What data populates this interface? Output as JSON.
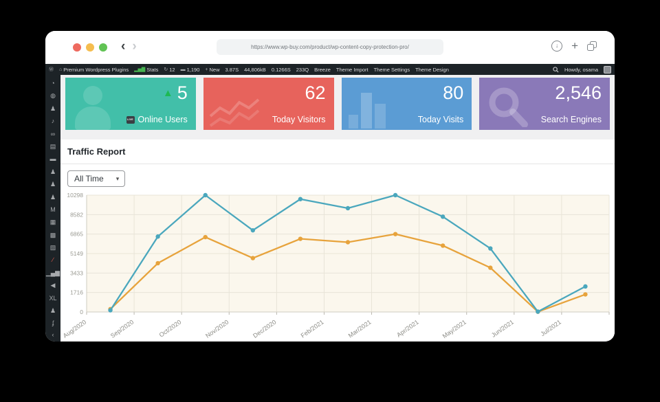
{
  "browser": {
    "url": "https://www.wp-buy.com/product/wp-content-copy-protection-pro/",
    "traffic_lights": [
      "#ee6a5f",
      "#f5bd4f",
      "#61c354"
    ]
  },
  "adminbar": {
    "items": [
      {
        "icon": "wordpress-logo-icon",
        "glyph": "Ⓦ",
        "label": ""
      },
      {
        "icon": "home-icon",
        "glyph": "⌂",
        "label": "Premium Wordpress Plugins"
      },
      {
        "icon": "stats-bars-icon",
        "glyph": "▂▅▇",
        "label": "Stats",
        "icon_color": "#46b450"
      },
      {
        "icon": "update-icon",
        "glyph": "↻",
        "label": "12"
      },
      {
        "icon": "comments-icon",
        "glyph": "▬",
        "label": "1,190"
      },
      {
        "icon": "plus-icon",
        "glyph": "+",
        "label": "New"
      },
      {
        "label": "3.87S"
      },
      {
        "label": "44,806kB"
      },
      {
        "label": "0.1266S"
      },
      {
        "label": "233Q"
      },
      {
        "label": "Breeze"
      },
      {
        "label": "Theme Import"
      },
      {
        "label": "Theme Settings"
      },
      {
        "label": "Theme Design"
      }
    ],
    "howdy": "Howdy, osama"
  },
  "sidebar": {
    "icons": [
      {
        "name": "dashboard-icon",
        "glyph": "◔"
      },
      {
        "name": "stats-circle-icon",
        "glyph": "◍"
      },
      {
        "name": "posts-pin-icon",
        "glyph": "♟"
      },
      {
        "name": "media-icon",
        "glyph": "♪"
      },
      {
        "name": "links-icon",
        "glyph": "∞"
      },
      {
        "name": "pages-icon",
        "glyph": "▤"
      },
      {
        "name": "comments-icon",
        "glyph": "▬"
      },
      {
        "name": "plugin-pin-icon",
        "glyph": "♟"
      },
      {
        "name": "plugin-pin-icon-2",
        "glyph": "♟"
      },
      {
        "name": "plugin-pin-icon-3",
        "glyph": "♟"
      },
      {
        "name": "mail-icon",
        "glyph": "M"
      },
      {
        "name": "forms-icon",
        "glyph": "▦"
      },
      {
        "name": "templates-icon",
        "glyph": "▩"
      },
      {
        "name": "widgets-icon",
        "glyph": "▨"
      },
      {
        "name": "brush-icon",
        "glyph": "∕",
        "color": "#e35b4f"
      },
      {
        "name": "stats-bars-icon",
        "glyph": "▁▄▆"
      },
      {
        "name": "megaphone-icon",
        "glyph": "◀"
      },
      {
        "name": "xl-plugin-label",
        "glyph": "XL"
      },
      {
        "name": "pin-icon",
        "glyph": "♟"
      },
      {
        "name": "feather-icon",
        "glyph": "ʄ"
      }
    ],
    "collapse_glyph": "‹"
  },
  "cards": [
    {
      "value": "5",
      "label": "Online Users",
      "color": "#42bfa9",
      "trend": "up",
      "trend_color": "#1db954",
      "badge": "LIVE"
    },
    {
      "value": "62",
      "label": "Today Visitors",
      "color": "#e7635c"
    },
    {
      "value": "80",
      "label": "Today Visits",
      "color": "#5b9cd4"
    },
    {
      "value": "2,546",
      "label": "Search Engines",
      "color": "#8a79b8"
    }
  ],
  "panel": {
    "title": "Traffic Report",
    "filter_value": "All Time"
  },
  "chart_data": {
    "type": "line",
    "title": "",
    "xlabel": "",
    "ylabel": "",
    "categories": [
      "Aug/2020",
      "Sep/2020",
      "Oct/2020",
      "Nov/2020",
      "Dec/2020",
      "Feb/2021",
      "Mar/2021",
      "Apr/2021",
      "May/2021",
      "Jun/2021",
      "Jul/2021"
    ],
    "series": [
      {
        "name": "orange-series",
        "color": "#e7a33c",
        "values": [
          250,
          4300,
          6600,
          4750,
          6450,
          6150,
          6865,
          5850,
          3900,
          20,
          1550
        ]
      },
      {
        "name": "teal-series",
        "color": "#4aa7bd",
        "values": [
          150,
          6650,
          10298,
          7200,
          9950,
          9150,
          10298,
          8400,
          5600,
          30,
          2250
        ]
      }
    ],
    "y_ticks": [
      0,
      1716,
      3433,
      5149,
      6865,
      8582,
      10298
    ],
    "ylim": [
      0,
      10298
    ],
    "grid": true,
    "legend": "none",
    "plot_bg": "#fbf7ed",
    "grid_color": "#e8e4d8",
    "axis_text_color": "#9b9b93"
  }
}
